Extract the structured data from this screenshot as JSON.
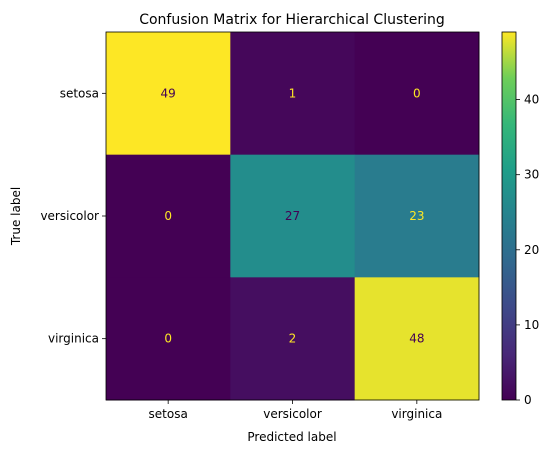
{
  "chart_data": {
    "type": "heatmap",
    "title": "Confusion Matrix for Hierarchical Clustering",
    "xlabel": "Predicted label",
    "ylabel": "True label",
    "x_categories": [
      "setosa",
      "versicolor",
      "virginica"
    ],
    "y_categories": [
      "setosa",
      "versicolor",
      "virginica"
    ],
    "values": [
      [
        49,
        1,
        0
      ],
      [
        0,
        27,
        23
      ],
      [
        0,
        2,
        48
      ]
    ],
    "colormap": "viridis",
    "color_range": [
      0,
      49
    ],
    "colorbar_ticks": [
      0,
      10,
      20,
      30,
      40
    ],
    "annotation_colors": {
      "dark_cell": "#fde725",
      "light_cell": "#440154"
    }
  }
}
